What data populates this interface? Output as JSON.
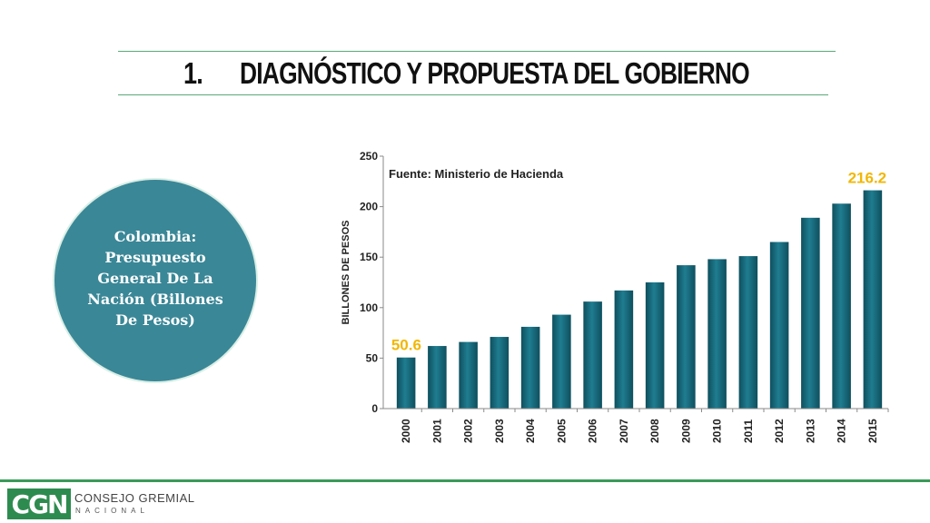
{
  "slide": {
    "number": "1.",
    "title": "DIAGNÓSTICO Y PROPUESTA DEL GOBIERNO",
    "circle_text": "Colombia: Presupuesto General De La Nación (Billones De Pesos)"
  },
  "footer": {
    "logo_mark": "CGN",
    "logo_line1": "CONSEJO GREMIAL",
    "logo_line2": "NACIONAL"
  },
  "colors": {
    "bar": "#176a7c",
    "circle": "#3a8797",
    "highlight_label": "#f2b705",
    "rule": "#5aa878"
  },
  "chart_data": {
    "type": "bar",
    "source": "Fuente: Ministerio de Hacienda",
    "ylabel": "BILLONES DE PESOS",
    "categories": [
      "2000",
      "2001",
      "2002",
      "2003",
      "2004",
      "2005",
      "2006",
      "2007",
      "2008",
      "2009",
      "2010",
      "2011",
      "2012",
      "2013",
      "2014",
      "2015"
    ],
    "values": [
      50.6,
      62,
      66,
      71,
      81,
      93,
      106,
      117,
      125,
      142,
      148,
      151,
      165,
      189,
      203,
      216.2
    ],
    "ylim": [
      0,
      250
    ],
    "yticks": [
      0,
      50,
      100,
      150,
      200,
      250
    ],
    "data_labels": [
      {
        "index": 0,
        "text": "50.6"
      },
      {
        "index": 15,
        "text": "216.2"
      }
    ],
    "grid": false,
    "legend": "none"
  }
}
